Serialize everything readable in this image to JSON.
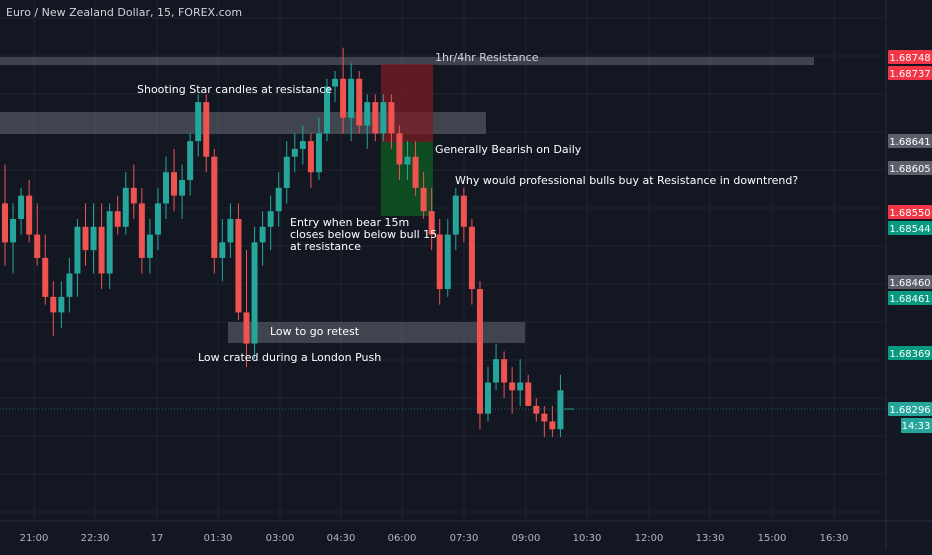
{
  "header": {
    "title": "Euro / New Zealand Dollar, 15, FOREX.com"
  },
  "colors": {
    "bull": "#26a69a",
    "bear": "#ef5350",
    "background": "#131722",
    "grid": "#1f2330",
    "text": "#d1d4dc",
    "gray_box": "#9598a1"
  },
  "annotations": {
    "resistance_1h4h": "1hr/4hr Resistance",
    "shooting_star": "Shooting Star candles at resistance",
    "bearish_daily": "Generally Bearish on Daily",
    "why_bulls": "Why would professional bulls buy at Resistance in downtrend?",
    "entry_line1": "Entry when bear 15m",
    "entry_line2": "closes below below bull 15",
    "entry_line3": "at resistance",
    "low_retest": "Low to go retest",
    "low_london": "Low crated during a London Push"
  },
  "price_scale": {
    "labels": [
      {
        "value": "1.68748",
        "color": "#f23645"
      },
      {
        "value": "1.68737",
        "color": "#f23645"
      },
      {
        "value": "1.68641",
        "color": "#5d606b"
      },
      {
        "value": "1.68605",
        "color": "#5d606b"
      },
      {
        "value": "1.68550",
        "color": "#f23645"
      },
      {
        "value": "1.68544",
        "color": "#089981"
      },
      {
        "value": "1.68460",
        "color": "#5d606b"
      },
      {
        "value": "1.68461",
        "color": "#089981"
      },
      {
        "value": "1.68369",
        "color": "#089981"
      },
      {
        "value": "1.68296",
        "color": "#26a69a"
      }
    ],
    "countdown": "14:33"
  },
  "time_axis": {
    "labels": [
      "21:00",
      "22:30",
      "17",
      "01:30",
      "03:00",
      "04:30",
      "06:00",
      "07:30",
      "09:00",
      "10:30",
      "12:00",
      "13:30",
      "15:00",
      "16:30"
    ]
  },
  "chart_data": {
    "type": "candlestick",
    "candles": [
      {
        "o": 1.6856,
        "h": 1.6861,
        "l": 1.6848,
        "c": 1.6851
      },
      {
        "o": 1.6851,
        "h": 1.6856,
        "l": 1.6847,
        "c": 1.6854
      },
      {
        "o": 1.6854,
        "h": 1.6858,
        "l": 1.6852,
        "c": 1.6857
      },
      {
        "o": 1.6857,
        "h": 1.6859,
        "l": 1.6851,
        "c": 1.6852
      },
      {
        "o": 1.6852,
        "h": 1.6856,
        "l": 1.6848,
        "c": 1.6849
      },
      {
        "o": 1.6849,
        "h": 1.6852,
        "l": 1.6843,
        "c": 1.6844
      },
      {
        "o": 1.6844,
        "h": 1.6846,
        "l": 1.6839,
        "c": 1.6842
      },
      {
        "o": 1.6842,
        "h": 1.6846,
        "l": 1.684,
        "c": 1.6844
      },
      {
        "o": 1.6844,
        "h": 1.6849,
        "l": 1.6842,
        "c": 1.6847
      },
      {
        "o": 1.6847,
        "h": 1.6854,
        "l": 1.6844,
        "c": 1.6853
      },
      {
        "o": 1.6853,
        "h": 1.6856,
        "l": 1.6848,
        "c": 1.685
      },
      {
        "o": 1.685,
        "h": 1.6856,
        "l": 1.6847,
        "c": 1.6853
      },
      {
        "o": 1.6853,
        "h": 1.6856,
        "l": 1.6845,
        "c": 1.6847
      },
      {
        "o": 1.6847,
        "h": 1.6856,
        "l": 1.6845,
        "c": 1.6855
      },
      {
        "o": 1.6855,
        "h": 1.6857,
        "l": 1.6852,
        "c": 1.6853
      },
      {
        "o": 1.6853,
        "h": 1.686,
        "l": 1.6852,
        "c": 1.6858
      },
      {
        "o": 1.6858,
        "h": 1.6861,
        "l": 1.6854,
        "c": 1.6856
      },
      {
        "o": 1.6856,
        "h": 1.6858,
        "l": 1.6847,
        "c": 1.6849
      },
      {
        "o": 1.6849,
        "h": 1.6854,
        "l": 1.6847,
        "c": 1.6852
      },
      {
        "o": 1.6852,
        "h": 1.6858,
        "l": 1.685,
        "c": 1.6856
      },
      {
        "o": 1.6856,
        "h": 1.6862,
        "l": 1.6854,
        "c": 1.686
      },
      {
        "o": 1.686,
        "h": 1.6863,
        "l": 1.6855,
        "c": 1.6857
      },
      {
        "o": 1.6857,
        "h": 1.6861,
        "l": 1.6854,
        "c": 1.6859
      },
      {
        "o": 1.6859,
        "h": 1.6865,
        "l": 1.6857,
        "c": 1.6864
      },
      {
        "o": 1.6864,
        "h": 1.687,
        "l": 1.6862,
        "c": 1.6869
      },
      {
        "o": 1.6869,
        "h": 1.687,
        "l": 1.686,
        "c": 1.6862
      },
      {
        "o": 1.6862,
        "h": 1.6863,
        "l": 1.6847,
        "c": 1.6849
      },
      {
        "o": 1.6849,
        "h": 1.6854,
        "l": 1.6846,
        "c": 1.6851
      },
      {
        "o": 1.6851,
        "h": 1.6856,
        "l": 1.6849,
        "c": 1.6854
      },
      {
        "o": 1.6854,
        "h": 1.6856,
        "l": 1.6841,
        "c": 1.6842
      },
      {
        "o": 1.6842,
        "h": 1.685,
        "l": 1.6835,
        "c": 1.6838
      },
      {
        "o": 1.6838,
        "h": 1.6853,
        "l": 1.6836,
        "c": 1.6851
      },
      {
        "o": 1.6851,
        "h": 1.6855,
        "l": 1.6848,
        "c": 1.6853
      },
      {
        "o": 1.6853,
        "h": 1.6857,
        "l": 1.685,
        "c": 1.6855
      },
      {
        "o": 1.6855,
        "h": 1.686,
        "l": 1.6853,
        "c": 1.6858
      },
      {
        "o": 1.6858,
        "h": 1.6864,
        "l": 1.6856,
        "c": 1.6862
      },
      {
        "o": 1.6862,
        "h": 1.6865,
        "l": 1.686,
        "c": 1.6863
      },
      {
        "o": 1.6863,
        "h": 1.6866,
        "l": 1.6861,
        "c": 1.6864
      },
      {
        "o": 1.6864,
        "h": 1.6865,
        "l": 1.6858,
        "c": 1.686
      },
      {
        "o": 1.686,
        "h": 1.6867,
        "l": 1.6859,
        "c": 1.6865
      },
      {
        "o": 1.6865,
        "h": 1.6872,
        "l": 1.6864,
        "c": 1.6871
      },
      {
        "o": 1.6871,
        "h": 1.6873,
        "l": 1.6869,
        "c": 1.6872
      },
      {
        "o": 1.6872,
        "h": 1.6876,
        "l": 1.6865,
        "c": 1.6867
      },
      {
        "o": 1.6867,
        "h": 1.6874,
        "l": 1.6864,
        "c": 1.6872
      },
      {
        "o": 1.6872,
        "h": 1.6873,
        "l": 1.6865,
        "c": 1.6866
      },
      {
        "o": 1.6866,
        "h": 1.687,
        "l": 1.6863,
        "c": 1.6869
      },
      {
        "o": 1.6869,
        "h": 1.687,
        "l": 1.6864,
        "c": 1.6865
      },
      {
        "o": 1.6865,
        "h": 1.687,
        "l": 1.6864,
        "c": 1.6869
      },
      {
        "o": 1.6869,
        "h": 1.687,
        "l": 1.6863,
        "c": 1.6865
      },
      {
        "o": 1.6865,
        "h": 1.6866,
        "l": 1.6859,
        "c": 1.6861
      },
      {
        "o": 1.6861,
        "h": 1.6864,
        "l": 1.6859,
        "c": 1.6862
      },
      {
        "o": 1.6862,
        "h": 1.6864,
        "l": 1.6857,
        "c": 1.6858
      },
      {
        "o": 1.6858,
        "h": 1.686,
        "l": 1.6854,
        "c": 1.6855
      },
      {
        "o": 1.6855,
        "h": 1.6858,
        "l": 1.685,
        "c": 1.6852
      },
      {
        "o": 1.6852,
        "h": 1.6854,
        "l": 1.6843,
        "c": 1.6845
      },
      {
        "o": 1.6845,
        "h": 1.6854,
        "l": 1.6844,
        "c": 1.6852
      },
      {
        "o": 1.6852,
        "h": 1.6858,
        "l": 1.685,
        "c": 1.6857
      },
      {
        "o": 1.6857,
        "h": 1.6858,
        "l": 1.6851,
        "c": 1.6853
      },
      {
        "o": 1.6853,
        "h": 1.6854,
        "l": 1.6843,
        "c": 1.6845
      },
      {
        "o": 1.6845,
        "h": 1.6846,
        "l": 1.6827,
        "c": 1.6829
      },
      {
        "o": 1.6829,
        "h": 1.6835,
        "l": 1.6828,
        "c": 1.6833
      },
      {
        "o": 1.6833,
        "h": 1.6838,
        "l": 1.6832,
        "c": 1.6836
      },
      {
        "o": 1.6836,
        "h": 1.6837,
        "l": 1.6831,
        "c": 1.6833
      },
      {
        "o": 1.6833,
        "h": 1.6835,
        "l": 1.6829,
        "c": 1.6832
      },
      {
        "o": 1.6832,
        "h": 1.6836,
        "l": 1.683,
        "c": 1.6833
      },
      {
        "o": 1.6833,
        "h": 1.6834,
        "l": 1.683,
        "c": 1.683
      },
      {
        "o": 1.683,
        "h": 1.6831,
        "l": 1.6828,
        "c": 1.6829
      },
      {
        "o": 1.6829,
        "h": 1.683,
        "l": 1.6826,
        "c": 1.6828
      },
      {
        "o": 1.6828,
        "h": 1.683,
        "l": 1.6826,
        "c": 1.6827
      },
      {
        "o": 1.6827,
        "h": 1.6834,
        "l": 1.6826,
        "c": 1.6832
      }
    ],
    "last_price": 1.68296
  }
}
